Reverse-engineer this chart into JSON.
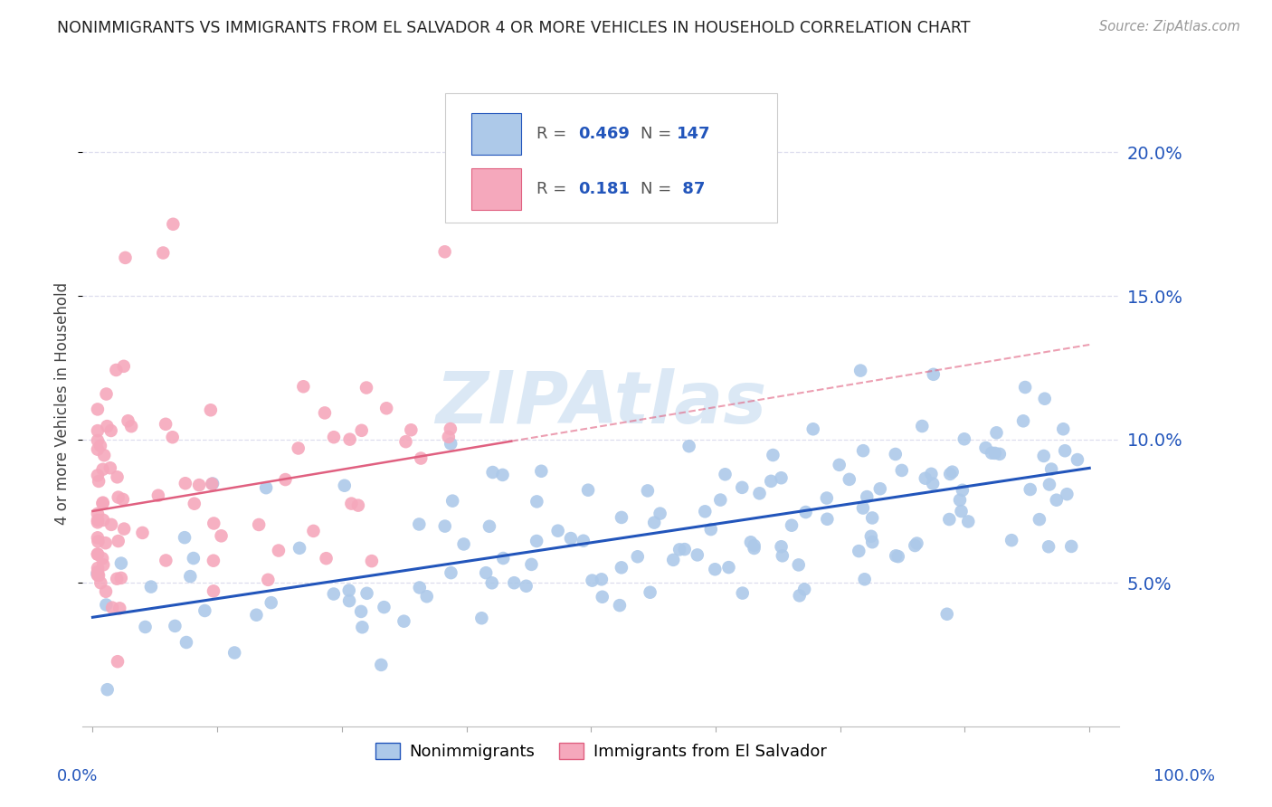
{
  "title": "NONIMMIGRANTS VS IMMIGRANTS FROM EL SALVADOR 4 OR MORE VEHICLES IN HOUSEHOLD CORRELATION CHART",
  "source": "Source: ZipAtlas.com",
  "ylabel": "4 or more Vehicles in Household",
  "legend1_label": "Nonimmigrants",
  "legend2_label": "Immigrants from El Salvador",
  "R1": 0.469,
  "N1": 147,
  "R2": 0.181,
  "N2": 87,
  "color_blue": "#adc9e9",
  "color_blue_line": "#2255bb",
  "color_pink": "#f5a8bc",
  "color_pink_line": "#e06080",
  "color_blue_text": "#2255bb",
  "color_pink_text": "#2255bb",
  "watermark_color": "#c8ddf0",
  "grid_color": "#ddddee",
  "xlim": [
    0.0,
    1.0
  ],
  "ylim": [
    0.0,
    0.22
  ],
  "blue_intercept": 0.038,
  "blue_slope": 0.052,
  "pink_intercept": 0.075,
  "pink_slope": 0.058
}
